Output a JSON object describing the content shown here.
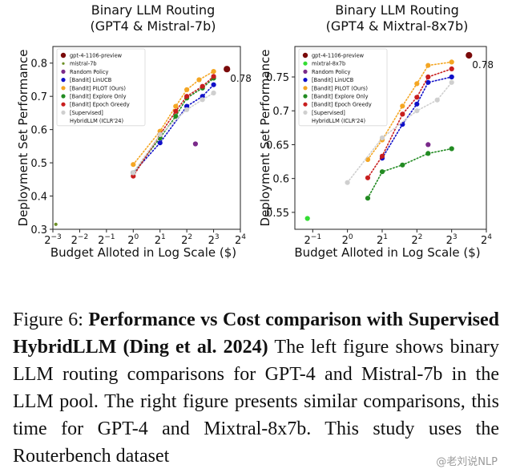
{
  "figure": {
    "caption_label": "Figure 6:",
    "caption_bold": "Performance vs Cost comparison with Supervised HybridLLM (Ding et al.  2024)",
    "caption_rest": "The left figure shows binary LLM routing comparisons for GPT-4 and Mistral-7b in the LLM pool.  The right figure presents similar comparisons, this time for GPT-4 and Mixtral-8x7b. This study uses the Routerbench dataset",
    "watermark": "@老刘说NLP"
  },
  "colors": {
    "gpt4": "#7a0a0a",
    "small": "#6b8e23",
    "small_right": "#33dd33",
    "random": "#7a2a8a",
    "linucb": "#1010c8",
    "pilot": "#f4a623",
    "explore": "#228b22",
    "epoch": "#c81e1e",
    "hybrid": "#cfcfcf"
  },
  "chart_data": [
    {
      "type": "scatter",
      "title": "Binary LLM Routing\n(GPT4 & Mistral-7b)",
      "xlabel": "Budget Alloted in Log Scale ($)",
      "ylabel": "Deployment Set Performance",
      "x_scale": "log2",
      "xlim": [
        0.125,
        16
      ],
      "ylim": [
        0.3,
        0.85
      ],
      "xticks": [
        {
          "v": 0.125,
          "base": "2",
          "exp": "−3"
        },
        {
          "v": 0.25,
          "base": "2",
          "exp": "−2"
        },
        {
          "v": 0.5,
          "base": "2",
          "exp": "−1"
        },
        {
          "v": 1,
          "base": "2",
          "exp": "0"
        },
        {
          "v": 2,
          "base": "2",
          "exp": "1"
        },
        {
          "v": 4,
          "base": "2",
          "exp": "2"
        },
        {
          "v": 8,
          "base": "2",
          "exp": "3"
        },
        {
          "v": 16,
          "base": "2",
          "exp": "4"
        }
      ],
      "yticks": [
        0.3,
        0.4,
        0.5,
        0.6,
        0.7,
        0.8
      ],
      "legend_position": "top-left",
      "legend": [
        {
          "label": "gpt-4-1106-preview",
          "color_key": "gpt4"
        },
        {
          "label": "mistral-7b",
          "color_key": "small"
        },
        {
          "label": "Random Policy",
          "color_key": "random"
        },
        {
          "label": "[Bandit] LinUCB",
          "color_key": "linucb"
        },
        {
          "label": "[Bandit] PILOT (Ours)",
          "color_key": "pilot"
        },
        {
          "label": "[Bandit] Explore Only",
          "color_key": "explore"
        },
        {
          "label": "[Bandit] Epoch Greedy",
          "color_key": "epoch"
        },
        {
          "label": "[Supervised]",
          "color_key": "hybrid"
        },
        {
          "label": "HybridLLM (ICLR'24)",
          "color_key": "none"
        }
      ],
      "annotation": {
        "text": "0.78",
        "x": 11.3,
        "y": 0.782
      },
      "series": [
        {
          "name": "gpt-4-1106-preview",
          "color_key": "gpt4",
          "size": 7,
          "line": false,
          "points": [
            [
              11.3,
              0.782
            ]
          ]
        },
        {
          "name": "mistral-7b",
          "color_key": "small",
          "size": 3,
          "line": false,
          "points": [
            [
              0.135,
              0.315
            ]
          ]
        },
        {
          "name": "Random Policy",
          "color_key": "random",
          "size": 5,
          "line": false,
          "points": [
            [
              5.0,
              0.557
            ]
          ]
        },
        {
          "name": "[Bandit] LinUCB",
          "color_key": "linucb",
          "size": 5,
          "line": true,
          "points": [
            [
              1.0,
              0.47
            ],
            [
              2.0,
              0.56
            ],
            [
              4.0,
              0.67
            ],
            [
              6.0,
              0.7
            ],
            [
              8.0,
              0.735
            ]
          ]
        },
        {
          "name": "[Bandit] PILOT (Ours)",
          "color_key": "pilot",
          "size": 5,
          "line": true,
          "points": [
            [
              1.0,
              0.495
            ],
            [
              2.0,
              0.595
            ],
            [
              3.0,
              0.67
            ],
            [
              4.0,
              0.72
            ],
            [
              5.5,
              0.75
            ],
            [
              8.0,
              0.775
            ]
          ]
        },
        {
          "name": "[Bandit] Explore Only",
          "color_key": "explore",
          "size": 5,
          "line": true,
          "points": [
            [
              1.0,
              0.47
            ],
            [
              2.0,
              0.575
            ],
            [
              3.0,
              0.64
            ],
            [
              4.0,
              0.695
            ],
            [
              6.0,
              0.725
            ],
            [
              8.0,
              0.755
            ]
          ]
        },
        {
          "name": "[Bandit] Epoch Greedy",
          "color_key": "epoch",
          "size": 5,
          "line": true,
          "points": [
            [
              1.0,
              0.46
            ],
            [
              2.0,
              0.585
            ],
            [
              3.0,
              0.655
            ],
            [
              4.0,
              0.7
            ],
            [
              6.0,
              0.73
            ],
            [
              8.0,
              0.76
            ]
          ]
        },
        {
          "name": "[Supervised] HybridLLM (ICLR'24)",
          "color_key": "hybrid",
          "size": 5,
          "line": true,
          "points": [
            [
              1.0,
              0.47
            ],
            [
              2.0,
              0.585
            ],
            [
              4.0,
              0.66
            ],
            [
              6.0,
              0.69
            ],
            [
              8.0,
              0.71
            ]
          ]
        }
      ]
    },
    {
      "type": "scatter",
      "title": "Binary LLM Routing\n(GPT4 & Mixtral-8x7b)",
      "xlabel": "Budget Alloted in Log Scale ($)",
      "ylabel": "Deployment Set Performance",
      "x_scale": "log2",
      "xlim": [
        0.35,
        16
      ],
      "ylim": [
        0.525,
        0.795
      ],
      "xticks": [
        {
          "v": 0.5,
          "base": "2",
          "exp": "−1"
        },
        {
          "v": 1,
          "base": "2",
          "exp": "0"
        },
        {
          "v": 2,
          "base": "2",
          "exp": "1"
        },
        {
          "v": 4,
          "base": "2",
          "exp": "2"
        },
        {
          "v": 8,
          "base": "2",
          "exp": "3"
        },
        {
          "v": 16,
          "base": "2",
          "exp": "4"
        }
      ],
      "yticks": [
        0.55,
        0.6,
        0.65,
        0.7,
        0.75
      ],
      "legend_position": "top-left",
      "legend": [
        {
          "label": "gpt-4-1106-preview",
          "color_key": "gpt4"
        },
        {
          "label": "mixtral-8x7b",
          "color_key": "small_right"
        },
        {
          "label": "Random Policy",
          "color_key": "random"
        },
        {
          "label": "[Bandit] LinUCB",
          "color_key": "linucb"
        },
        {
          "label": "[Bandit] PILOT (Ours)",
          "color_key": "pilot"
        },
        {
          "label": "[Bandit] Explore Only",
          "color_key": "explore"
        },
        {
          "label": "[Bandit] Epoch Greedy",
          "color_key": "epoch"
        },
        {
          "label": "[Supervised]",
          "color_key": "hybrid"
        },
        {
          "label": "HybridLLM (ICLR'24)",
          "color_key": "none"
        }
      ],
      "annotation": {
        "text": "0.78",
        "x": 11.3,
        "y": 0.782
      },
      "series": [
        {
          "name": "gpt-4-1106-preview",
          "color_key": "gpt4",
          "size": 7,
          "line": false,
          "points": [
            [
              11.3,
              0.782
            ]
          ]
        },
        {
          "name": "mixtral-8x7b",
          "color_key": "small_right",
          "size": 5,
          "line": false,
          "points": [
            [
              0.45,
              0.541
            ]
          ]
        },
        {
          "name": "Random Policy",
          "color_key": "random",
          "size": 5,
          "line": false,
          "points": [
            [
              5.0,
              0.65
            ]
          ]
        },
        {
          "name": "[Bandit] LinUCB",
          "color_key": "linucb",
          "size": 5,
          "line": true,
          "points": [
            [
              2.0,
              0.63
            ],
            [
              3.0,
              0.68
            ],
            [
              4.0,
              0.71
            ],
            [
              5.0,
              0.742
            ],
            [
              8.0,
              0.75
            ]
          ]
        },
        {
          "name": "[Bandit] PILOT (Ours)",
          "color_key": "pilot",
          "size": 5,
          "line": true,
          "points": [
            [
              1.5,
              0.628
            ],
            [
              2.0,
              0.657
            ],
            [
              3.0,
              0.707
            ],
            [
              4.0,
              0.74
            ],
            [
              5.0,
              0.767
            ],
            [
              8.0,
              0.772
            ]
          ]
        },
        {
          "name": "[Bandit] Explore Only",
          "color_key": "explore",
          "size": 5,
          "line": true,
          "points": [
            [
              1.5,
              0.571
            ],
            [
              2.0,
              0.61
            ],
            [
              3.0,
              0.62
            ],
            [
              5.0,
              0.637
            ],
            [
              8.0,
              0.644
            ]
          ]
        },
        {
          "name": "[Bandit] Epoch Greedy",
          "color_key": "epoch",
          "size": 5,
          "line": true,
          "points": [
            [
              1.5,
              0.601
            ],
            [
              2.0,
              0.633
            ],
            [
              3.0,
              0.695
            ],
            [
              4.0,
              0.72
            ],
            [
              5.0,
              0.75
            ],
            [
              8.0,
              0.762
            ]
          ]
        },
        {
          "name": "[Supervised] HybridLLM (ICLR'24)",
          "color_key": "hybrid",
          "size": 5,
          "line": true,
          "points": [
            [
              1.0,
              0.594
            ],
            [
              2.0,
              0.66
            ],
            [
              4.0,
              0.7
            ],
            [
              6.0,
              0.716
            ],
            [
              8.0,
              0.742
            ]
          ]
        }
      ]
    }
  ]
}
